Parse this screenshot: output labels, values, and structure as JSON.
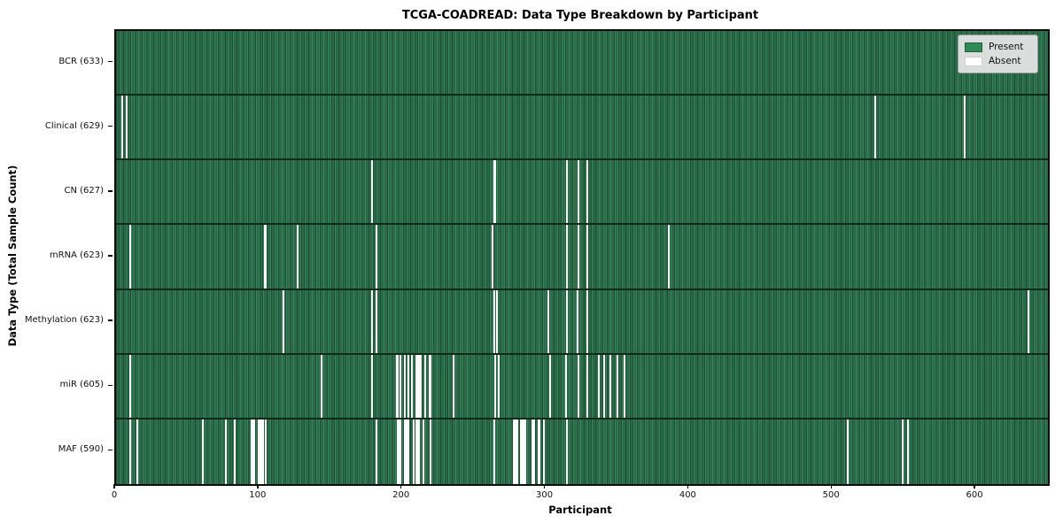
{
  "figure": {
    "title": "TCGA-COADREAD: Data Type Breakdown by Participant",
    "xlabel": "Participant",
    "ylabel": "Data Type (Total Sample Count)"
  },
  "legend": {
    "present_label": "Present",
    "absent_label": "Absent"
  },
  "colors": {
    "present": "#2e8b57",
    "present_stripe_dark": "#1d5134",
    "present_stripe_light": "#37835b",
    "absent": "#ffffff",
    "frame": "#0c0c0c",
    "legend_bg": "#e8e8e8",
    "legend_border": "#9a9a9a"
  },
  "chart_data": {
    "type": "heatmap",
    "title": "TCGA-COADREAD: Data Type Breakdown by Participant",
    "xlabel": "Participant",
    "ylabel": "Data Type (Total Sample Count)",
    "legend_entries": [
      "Present",
      "Absent"
    ],
    "legend_position": "upper right",
    "x_ticks": [
      0,
      100,
      200,
      300,
      400,
      500,
      600
    ],
    "x_axis_max": 650,
    "grid": false,
    "rows": [
      {
        "data_type": "BCR",
        "label": "BCR (633)",
        "total_samples": 633,
        "absent_positions": []
      },
      {
        "data_type": "Clinical",
        "label": "Clinical (629)",
        "total_samples": 629,
        "absent_positions": [
          4,
          7,
          529,
          591
        ]
      },
      {
        "data_type": "CN",
        "label": "CN (627)",
        "total_samples": 627,
        "absent_positions": [
          178,
          263,
          264,
          314,
          322,
          328
        ]
      },
      {
        "data_type": "mRNA",
        "label": "mRNA (623)",
        "total_samples": 623,
        "absent_positions": [
          9,
          103,
          104,
          126,
          181,
          262,
          314,
          322,
          328,
          385
        ]
      },
      {
        "data_type": "Methylation",
        "label": "Methylation (623)",
        "total_samples": 623,
        "absent_positions": [
          116,
          178,
          181,
          263,
          265,
          301,
          314,
          321,
          328,
          636
        ]
      },
      {
        "data_type": "miR",
        "label": "miR (605)",
        "total_samples": 605,
        "absent_positions": [
          9,
          143,
          178,
          195,
          196,
          198,
          201,
          203,
          206,
          209,
          210,
          211,
          212,
          215,
          218,
          219,
          235,
          264,
          266,
          302,
          313,
          322,
          328,
          336,
          340,
          344,
          349,
          354
        ]
      },
      {
        "data_type": "MAF",
        "label": "MAF (590)",
        "total_samples": 590,
        "absent_positions": [
          9,
          14,
          60,
          76,
          82,
          94,
          95,
          96,
          99,
          100,
          101,
          102,
          104,
          181,
          196,
          197,
          198,
          201,
          202,
          203,
          207,
          209,
          210,
          211,
          214,
          219,
          263,
          277,
          278,
          279,
          282,
          283,
          284,
          285,
          290,
          291,
          294,
          295,
          298,
          314,
          510,
          548,
          552
        ]
      }
    ]
  }
}
